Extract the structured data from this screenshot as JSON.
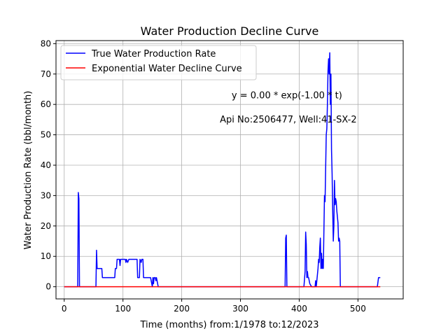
{
  "chart_data": {
    "type": "line",
    "title": "Water Production Decline Curve",
    "xlabel": "Time (months) from:1/1978 to:12/2023",
    "ylabel": "Water Production Rate (bbl/month)",
    "xlim": [
      -14,
      577
    ],
    "ylim": [
      -4,
      81
    ],
    "xticks": [
      0,
      100,
      200,
      300,
      400,
      500
    ],
    "yticks": [
      0,
      10,
      20,
      30,
      40,
      50,
      60,
      70,
      80
    ],
    "grid": true,
    "legend_position": "top-left",
    "annotations": [
      {
        "text": "y = 0.00 * exp(-1.00 * t)",
        "x": 285,
        "y": 62
      },
      {
        "text": "Api No:2506477, Well:41-SX-2",
        "x": 265,
        "y": 54
      }
    ],
    "series": [
      {
        "name": "True Water Production Rate",
        "color": "#0000ff",
        "points": [
          [
            0,
            0
          ],
          [
            23,
            0
          ],
          [
            24,
            31
          ],
          [
            25,
            29
          ],
          [
            26,
            0
          ],
          [
            54,
            0
          ],
          [
            55,
            12
          ],
          [
            56,
            6
          ],
          [
            64,
            6
          ],
          [
            65,
            3
          ],
          [
            86,
            3
          ],
          [
            87,
            6
          ],
          [
            89,
            6
          ],
          [
            90,
            9
          ],
          [
            94,
            9
          ],
          [
            95,
            7
          ],
          [
            96,
            9
          ],
          [
            104,
            9
          ],
          [
            105,
            8
          ],
          [
            106,
            9
          ],
          [
            108,
            8
          ],
          [
            110,
            9
          ],
          [
            124,
            9
          ],
          [
            125,
            3
          ],
          [
            128,
            3
          ],
          [
            129,
            9
          ],
          [
            131,
            8
          ],
          [
            132,
            9
          ],
          [
            134,
            9
          ],
          [
            135,
            3
          ],
          [
            147,
            3
          ],
          [
            148,
            2
          ],
          [
            150,
            0
          ],
          [
            151,
            3
          ],
          [
            152,
            1
          ],
          [
            153,
            3
          ],
          [
            155,
            3
          ],
          [
            156,
            2
          ],
          [
            157,
            3
          ],
          [
            158,
            2
          ],
          [
            160,
            0
          ],
          [
            376,
            0
          ],
          [
            377,
            16
          ],
          [
            378,
            17
          ],
          [
            379,
            0
          ],
          [
            408,
            0
          ],
          [
            410,
            5
          ],
          [
            411,
            18
          ],
          [
            412,
            14
          ],
          [
            413,
            3
          ],
          [
            414,
            5
          ],
          [
            415,
            3
          ],
          [
            416,
            3
          ],
          [
            417,
            2
          ],
          [
            418,
            1
          ],
          [
            421,
            0
          ],
          [
            427,
            0
          ],
          [
            428,
            2
          ],
          [
            429,
            0
          ],
          [
            430,
            2
          ],
          [
            432,
            6
          ],
          [
            433,
            9
          ],
          [
            434,
            8
          ],
          [
            435,
            13
          ],
          [
            436,
            16
          ],
          [
            437,
            6
          ],
          [
            438,
            11
          ],
          [
            439,
            6
          ],
          [
            440,
            9
          ],
          [
            441,
            6
          ],
          [
            443,
            30
          ],
          [
            444,
            28
          ],
          [
            446,
            50
          ],
          [
            447,
            52
          ],
          [
            448,
            60
          ],
          [
            449,
            71
          ],
          [
            450,
            75
          ],
          [
            451,
            70
          ],
          [
            452,
            77
          ],
          [
            453,
            60
          ],
          [
            454,
            70
          ],
          [
            455,
            45
          ],
          [
            456,
            37
          ],
          [
            457,
            25
          ],
          [
            458,
            15
          ],
          [
            459,
            20
          ],
          [
            460,
            35
          ],
          [
            461,
            27
          ],
          [
            462,
            29
          ],
          [
            463,
            28
          ],
          [
            464,
            25
          ],
          [
            466,
            21
          ],
          [
            467,
            15
          ],
          [
            468,
            16
          ],
          [
            469,
            15
          ],
          [
            470,
            0
          ],
          [
            533,
            0
          ],
          [
            535,
            3
          ],
          [
            538,
            3
          ]
        ]
      },
      {
        "name": "Exponential Water Decline Curve",
        "color": "#ff0000",
        "points": [
          [
            0,
            0
          ],
          [
            538,
            0
          ]
        ]
      }
    ]
  }
}
